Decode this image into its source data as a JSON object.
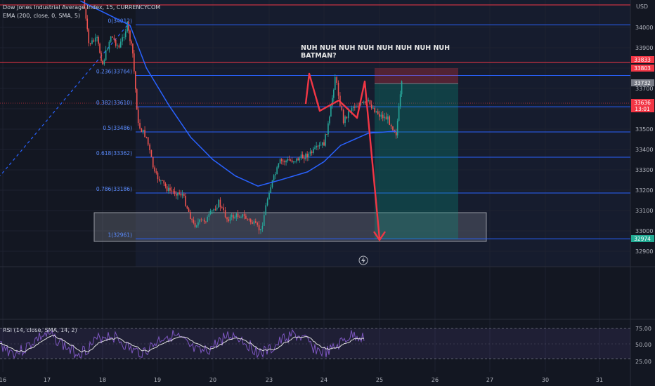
{
  "header": {
    "symbol_title": "Dow Jones Industrial Average Index, 15, CURRENCYCOM",
    "ema_label": "EMA (200, close, 0, SMA, 5)",
    "currency": "USD"
  },
  "annotation": {
    "line1": "NUH NUH NUH NUH NUH NUH NUH NUH",
    "line2": "BATMAN?"
  },
  "fib_levels": [
    {
      "label": "0(34012)",
      "value": 34012
    },
    {
      "label": "0.236(33764)",
      "value": 33764
    },
    {
      "label": "0.382(33610)",
      "value": 33610
    },
    {
      "label": "0.5(33486)",
      "value": 33486
    },
    {
      "label": "0.618(33362)",
      "value": 33362
    },
    {
      "label": "0.786(33186)",
      "value": 33186
    },
    {
      "label": "1(32961)",
      "value": 32961
    }
  ],
  "price_badges": [
    {
      "label": "33833",
      "color": "#f23645"
    },
    {
      "label": "33803",
      "color": "#f23645"
    },
    {
      "label": "33732",
      "color": "#787b86"
    },
    {
      "label": "33636",
      "color": "#f23645"
    },
    {
      "label": "13:01",
      "color": "#f23645"
    },
    {
      "label": "32974",
      "color": "#22ab94"
    }
  ],
  "rsi_label": "RSI (14, close, SMA, 14, 2)",
  "colors": {
    "background": "#131722",
    "fib_line": "#2962ff",
    "ema": "#2962ff",
    "arrow": "#f23645",
    "up_candle": "#26a69a",
    "down_candle": "#ef5350",
    "rsi": "#7e57c2"
  },
  "chart_data": [
    {
      "type": "candlestick",
      "title": "Dow Jones Industrial Average Index, 15, CURRENCYCOM",
      "y_axis": {
        "ticks": [
          34000,
          33900,
          33800,
          33700,
          33600,
          33500,
          33400,
          33300,
          33200,
          33100,
          33000,
          32900
        ],
        "range": [
          32860,
          34160
        ],
        "unit": "USD"
      },
      "x_axis": {
        "ticks": [
          "16",
          "17",
          "18",
          "19",
          "20",
          "23",
          "24",
          "25",
          "26",
          "27",
          "30",
          "31"
        ]
      },
      "price_path": [
        {
          "x": "17.65",
          "close": 34150
        },
        {
          "x": "17.75",
          "close": 33920
        },
        {
          "x": "17.9",
          "close": 33940
        },
        {
          "x": "18.0",
          "close": 33820
        },
        {
          "x": "18.15",
          "close": 33960
        },
        {
          "x": "18.3",
          "close": 33900
        },
        {
          "x": "18.45",
          "close": 34010
        },
        {
          "x": "18.55",
          "close": 33870
        },
        {
          "x": "18.65",
          "close": 33520
        },
        {
          "x": "18.8",
          "close": 33460
        },
        {
          "x": "18.95",
          "close": 33280
        },
        {
          "x": "19.2",
          "close": 33200
        },
        {
          "x": "19.45",
          "close": 33180
        },
        {
          "x": "19.65",
          "close": 33030
        },
        {
          "x": "19.9",
          "close": 33060
        },
        {
          "x": "20.1",
          "close": 33140
        },
        {
          "x": "20.25",
          "close": 33060
        },
        {
          "x": "20.5",
          "close": 33080
        },
        {
          "x": "20.7",
          "close": 33040
        },
        {
          "x": "20.85",
          "close": 33000
        },
        {
          "x": "21.0",
          "close": 33200
        },
        {
          "x": "21.2",
          "close": 33340
        },
        {
          "x": "21.5",
          "close": 33350
        },
        {
          "x": "21.75",
          "close": 33380
        },
        {
          "x": "22.0",
          "close": 33430
        },
        {
          "x": "22.1",
          "close": 33550
        },
        {
          "x": "22.2",
          "close": 33760
        },
        {
          "x": "22.35",
          "close": 33540
        },
        {
          "x": "22.5",
          "close": 33610
        },
        {
          "x": "22.8",
          "close": 33630
        },
        {
          "x": "23.0",
          "close": 33570
        },
        {
          "x": "23.15",
          "close": 33550
        },
        {
          "x": "23.3",
          "close": 33480
        },
        {
          "x": "23.4",
          "close": 33720
        }
      ],
      "ema_path": [
        {
          "x": "17.6",
          "y": 34130
        },
        {
          "x": "18.5",
          "y": 34010
        },
        {
          "x": "18.8",
          "y": 33800
        },
        {
          "x": "19.2",
          "y": 33620
        },
        {
          "x": "19.6",
          "y": 33460
        },
        {
          "x": "20.0",
          "y": 33350
        },
        {
          "x": "20.4",
          "y": 33270
        },
        {
          "x": "20.8",
          "y": 33220
        },
        {
          "x": "21.2",
          "y": 33250
        },
        {
          "x": "21.7",
          "y": 33290
        },
        {
          "x": "22.0",
          "y": 33340
        },
        {
          "x": "22.3",
          "y": 33420
        },
        {
          "x": "22.8",
          "y": 33480
        },
        {
          "x": "23.3",
          "y": 33490
        }
      ],
      "trendline": {
        "from": {
          "x": "18.45",
          "y": 34010
        },
        "to": {
          "x": "31.4",
          "y": 33270
        },
        "style": "dashed"
      },
      "demand_zone": {
        "x_start": "17.45",
        "x_end": "28.1",
        "y_low": 32961,
        "y_high": 33100
      },
      "position": {
        "x_start": "23.6",
        "x_end": "25.3",
        "entry": 33732,
        "stop": 33833,
        "target": 32974
      },
      "projected_path": [
        {
          "x": "23.4",
          "y": 33732
        },
        {
          "x": "23.6",
          "y": 33000
        }
      ]
    },
    {
      "type": "line",
      "title": "RSI (14, close, SMA, 14, 2)",
      "y_axis": {
        "ticks": [
          75.0,
          50.0,
          25.0
        ],
        "range": [
          15,
          85
        ]
      },
      "bands": [
        70,
        30
      ]
    }
  ]
}
